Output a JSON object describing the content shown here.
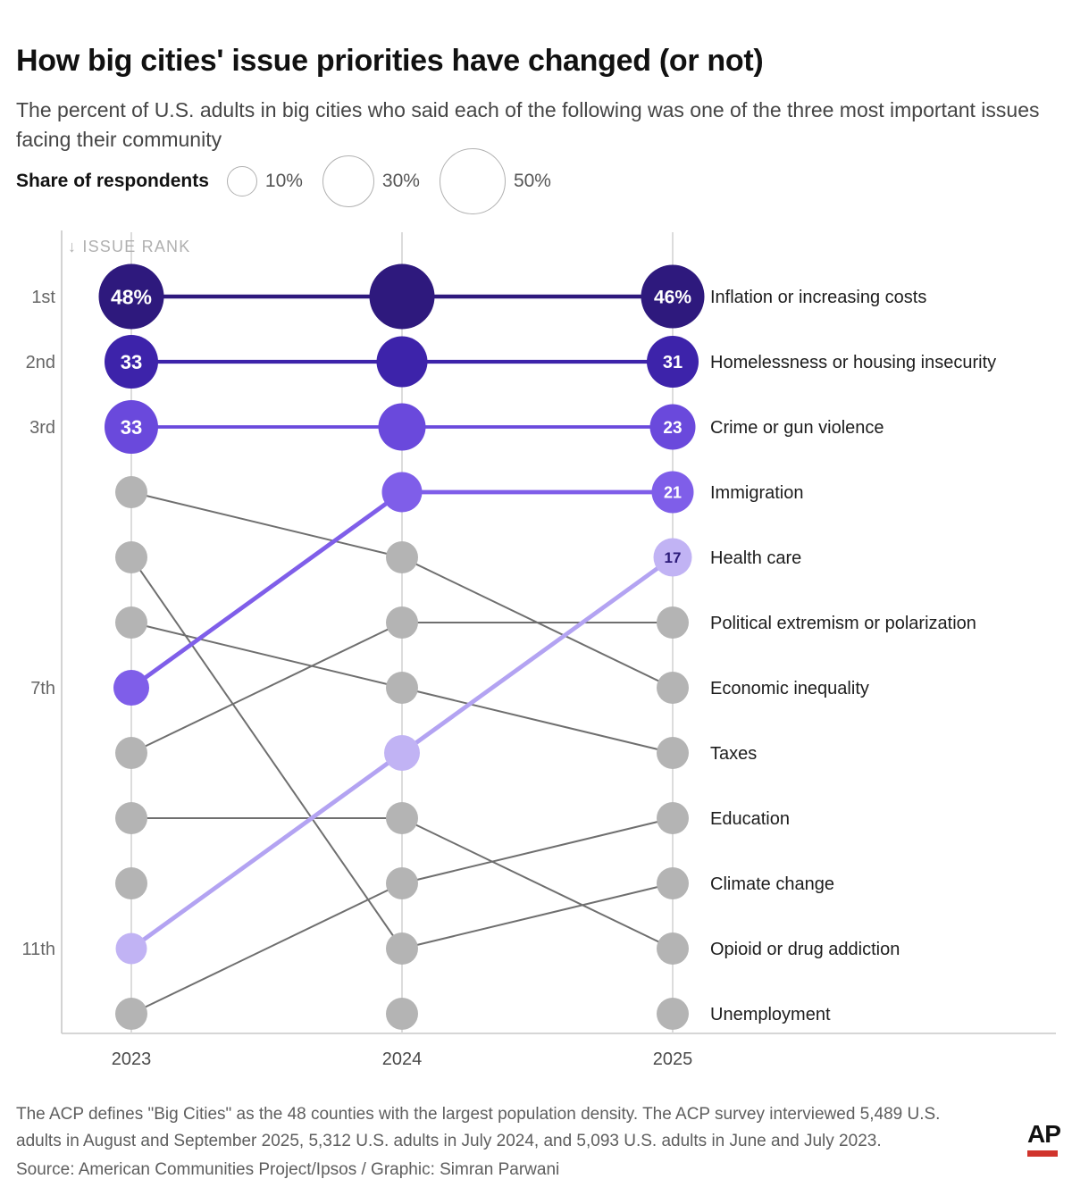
{
  "title": "How big cities' issue priorities have changed (or not)",
  "subtitle": "The percent of U.S. adults in big cities who said each of the following was one of the three most important issues facing their community",
  "legend": {
    "title": "Share of respondents",
    "items": [
      {
        "label": "10%",
        "r": 17
      },
      {
        "label": "30%",
        "r": 29
      },
      {
        "label": "50%",
        "r": 37
      }
    ]
  },
  "chart_data": {
    "type": "bump",
    "rank_axis_label": "↓ ISSUE RANK",
    "years": [
      "2023",
      "2024",
      "2025"
    ],
    "rank_labels": [
      {
        "rank": 1,
        "text": "1st"
      },
      {
        "rank": 2,
        "text": "2nd"
      },
      {
        "rank": 3,
        "text": "3rd"
      },
      {
        "rank": 7,
        "text": "7th"
      },
      {
        "rank": 11,
        "text": "11th"
      }
    ],
    "colors": {
      "gray_circle": "#b4b4b4",
      "gray_line": "#6f6f6f",
      "grid": "#dcdcdc",
      "axis": "#c8c8c8"
    },
    "issues": [
      {
        "name": "Inflation or increasing costs",
        "color": "#2e197d",
        "line_color": "#2e197d",
        "line_width": 4.6,
        "points": [
          {
            "year": "2023",
            "rank": 1,
            "r": 36.5,
            "label": "48%",
            "label_size": 23
          },
          {
            "year": "2024",
            "rank": 1,
            "r": 36.5
          },
          {
            "year": "2025",
            "rank": 1,
            "r": 35.5,
            "label": "46%",
            "label_size": 21
          }
        ]
      },
      {
        "name": "Homelessness or housing insecurity",
        "color": "#3d23aa",
        "line_color": "#3d23aa",
        "line_width": 4.2,
        "points": [
          {
            "year": "2023",
            "rank": 2,
            "r": 30,
            "label": "33",
            "label_size": 22
          },
          {
            "year": "2024",
            "rank": 2,
            "r": 28.5
          },
          {
            "year": "2025",
            "rank": 2,
            "r": 29,
            "label": "31",
            "label_size": 20
          }
        ]
      },
      {
        "name": "Crime or gun violence",
        "color": "#6a49dc",
        "line_color": "#6a49dc",
        "line_width": 3.8,
        "points": [
          {
            "year": "2023",
            "rank": 3,
            "r": 30,
            "label": "33",
            "label_size": 22
          },
          {
            "year": "2024",
            "rank": 3,
            "r": 26.5
          },
          {
            "year": "2025",
            "rank": 3,
            "r": 25.5,
            "label": "23",
            "label_size": 19
          }
        ]
      },
      {
        "name": "Immigration",
        "color": "#7f5ee9",
        "line_color": "#7f5ee9",
        "line_width": 4.8,
        "points": [
          {
            "year": "2023",
            "rank": 7,
            "r": 20
          },
          {
            "year": "2024",
            "rank": 4,
            "r": 22.5
          },
          {
            "year": "2025",
            "rank": 4,
            "r": 23.5,
            "label": "21",
            "label_size": 18
          }
        ]
      },
      {
        "name": "Health care",
        "color": "#c1b3f4",
        "line_color": "#b3a3f2",
        "line_width": 4.8,
        "label_color": "#2b1a78",
        "points": [
          {
            "year": "2023",
            "rank": 11,
            "r": 17.5
          },
          {
            "year": "2024",
            "rank": 8,
            "r": 20
          },
          {
            "year": "2025",
            "rank": 5,
            "r": 21.5,
            "label": "17",
            "label_size": 17
          }
        ]
      },
      {
        "name": "Political extremism or polarization",
        "gray": true,
        "points": [
          {
            "year": "2023",
            "rank": 8,
            "r": 18
          },
          {
            "year": "2024",
            "rank": 6,
            "r": 18
          },
          {
            "year": "2025",
            "rank": 6,
            "r": 18
          }
        ]
      },
      {
        "name": "Economic inequality",
        "gray": true,
        "points": [
          {
            "year": "2023",
            "rank": 4,
            "r": 18
          },
          {
            "year": "2024",
            "rank": 5,
            "r": 18
          },
          {
            "year": "2025",
            "rank": 7,
            "r": 18
          }
        ]
      },
      {
        "name": "Taxes",
        "gray": true,
        "points": [
          {
            "year": "2023",
            "rank": 6,
            "r": 18
          },
          {
            "year": "2024",
            "rank": 7,
            "r": 18
          },
          {
            "year": "2025",
            "rank": 8,
            "r": 18
          }
        ]
      },
      {
        "name": "Education",
        "gray": true,
        "points": [
          {
            "year": "2023",
            "rank": 12,
            "r": 18
          },
          {
            "year": "2024",
            "rank": 10,
            "r": 18
          },
          {
            "year": "2025",
            "rank": 9,
            "r": 18
          }
        ]
      },
      {
        "name": "Climate change",
        "gray": true,
        "points": [
          {
            "year": "2023",
            "rank": 5,
            "r": 18
          },
          {
            "year": "2024",
            "rank": 11,
            "r": 18
          },
          {
            "year": "2025",
            "rank": 10,
            "r": 18
          }
        ]
      },
      {
        "name": "Opioid or drug addiction",
        "gray": true,
        "points": [
          {
            "year": "2023",
            "rank": 9,
            "r": 18
          },
          {
            "year": "2024",
            "rank": 9,
            "r": 18
          },
          {
            "year": "2025",
            "rank": 11,
            "r": 18
          }
        ]
      },
      {
        "name": "Unemployment",
        "gray": true,
        "no_line": true,
        "points": [
          {
            "year": "2023",
            "rank": 10,
            "r": 18
          },
          {
            "year": "2024",
            "rank": 12,
            "r": 18
          },
          {
            "year": "2025",
            "rank": 12,
            "r": 18
          }
        ]
      }
    ]
  },
  "footnote_lines": [
    "The ACP defines \"Big Cities\" as the 48 counties with the largest population density. The ACP survey interviewed 5,489 U.S.",
    "adults in August and September 2025, 5,312 U.S. adults in July 2024, and 5,093 U.S. adults in June and July 2023."
  ],
  "source": "Source: American Communities Project/Ipsos / Graphic: Simran Parwani",
  "ap_logo": {
    "text": "AP",
    "bar_color": "#d0342c"
  }
}
